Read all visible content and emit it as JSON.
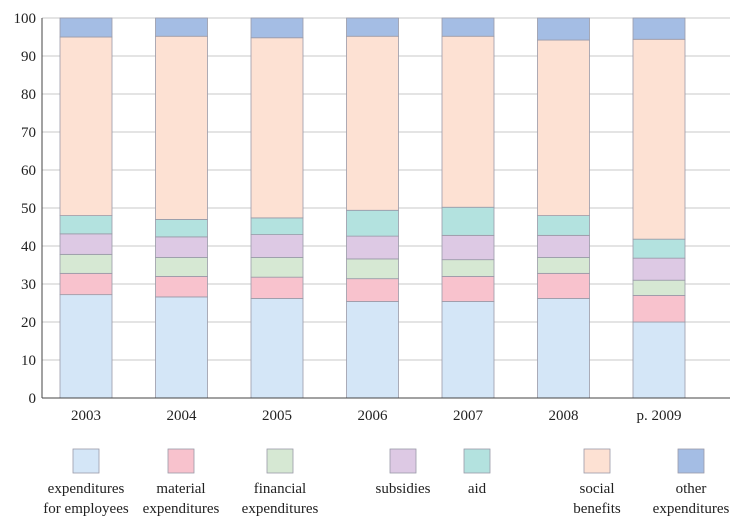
{
  "chart_data": {
    "type": "bar",
    "stacked": true,
    "categories": [
      "2003",
      "2004",
      "2005",
      "2006",
      "2007",
      "2008",
      "p. 2009"
    ],
    "ylim": [
      0,
      100
    ],
    "yticks": [
      0,
      10,
      20,
      30,
      40,
      50,
      60,
      70,
      80,
      90,
      100
    ],
    "grid": true,
    "legend_position": "bottom",
    "series": [
      {
        "name": "expenditures for employees",
        "label_lines": [
          "expenditures",
          "for employees"
        ],
        "color": "#d4e6f7",
        "values": [
          27.2,
          26.6,
          26.2,
          25.4,
          25.4,
          26.2,
          20.0
        ]
      },
      {
        "name": "material expenditures",
        "label_lines": [
          "material",
          "expenditures"
        ],
        "color": "#f8c2cd",
        "values": [
          5.6,
          5.4,
          5.6,
          6.0,
          6.6,
          6.6,
          7.0
        ]
      },
      {
        "name": "financial expenditures",
        "label_lines": [
          "financial",
          "expenditures"
        ],
        "color": "#d6e8d3",
        "values": [
          5.0,
          5.0,
          5.2,
          5.2,
          4.4,
          4.2,
          4.0
        ]
      },
      {
        "name": "subsidies",
        "label_lines": [
          "subsidies"
        ],
        "color": "#ddc9e4",
        "values": [
          5.4,
          5.4,
          6.0,
          6.0,
          6.4,
          5.8,
          5.8
        ]
      },
      {
        "name": "aid",
        "label_lines": [
          "aid"
        ],
        "color": "#b3e2df",
        "values": [
          4.8,
          4.6,
          4.4,
          6.8,
          7.4,
          5.2,
          5.0
        ]
      },
      {
        "name": "social benefits",
        "label_lines": [
          "social",
          "benefits"
        ],
        "color": "#fde1d3",
        "values": [
          47.0,
          48.2,
          47.4,
          45.8,
          45.0,
          46.2,
          52.6
        ]
      },
      {
        "name": "other expenditures",
        "label_lines": [
          "other",
          "expenditures"
        ],
        "color": "#a4bde4",
        "values": [
          5.0,
          4.8,
          5.2,
          4.8,
          4.8,
          5.8,
          5.6
        ]
      }
    ]
  }
}
